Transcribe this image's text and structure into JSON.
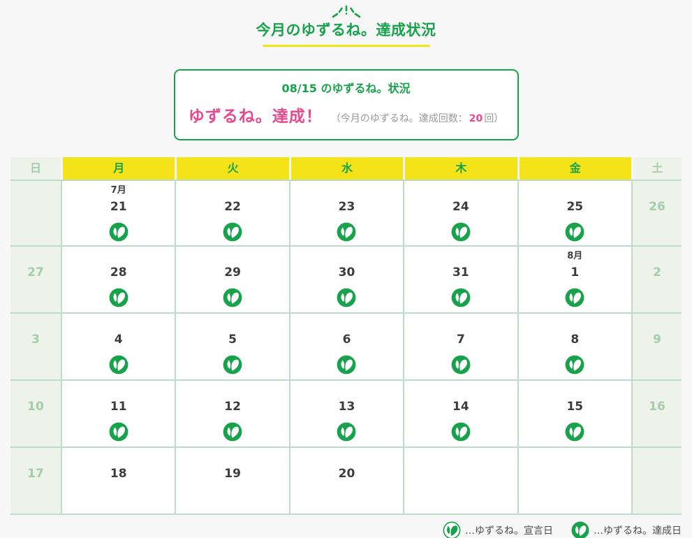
{
  "page": {
    "title": "今月のゆずるね。達成状況"
  },
  "status_box": {
    "heading": "08/15 のゆずるね。状況",
    "result": "ゆずるね。達成！",
    "count_prefix": "（今月のゆずるね。達成回数：",
    "count_value": "20",
    "count_suffix": "回）"
  },
  "calendar": {
    "weekdays": [
      "日",
      "月",
      "火",
      "水",
      "木",
      "金",
      "土"
    ],
    "rows": [
      [
        {
          "day": ""
        },
        {
          "month": "7月",
          "day": "21",
          "icon": "achieved"
        },
        {
          "day": "22",
          "icon": "achieved"
        },
        {
          "day": "23",
          "icon": "achieved"
        },
        {
          "day": "24",
          "icon": "achieved"
        },
        {
          "day": "25",
          "icon": "achieved"
        },
        {
          "day": "26"
        }
      ],
      [
        {
          "day": "27"
        },
        {
          "day": "28",
          "icon": "achieved"
        },
        {
          "day": "29",
          "icon": "achieved"
        },
        {
          "day": "30",
          "icon": "achieved"
        },
        {
          "day": "31",
          "icon": "achieved"
        },
        {
          "month": "8月",
          "day": "1",
          "icon": "achieved"
        },
        {
          "day": "2"
        }
      ],
      [
        {
          "day": "3"
        },
        {
          "day": "4",
          "icon": "achieved"
        },
        {
          "day": "5",
          "icon": "achieved"
        },
        {
          "day": "6",
          "icon": "achieved"
        },
        {
          "day": "7",
          "icon": "achieved"
        },
        {
          "day": "8",
          "icon": "achieved"
        },
        {
          "day": "9"
        }
      ],
      [
        {
          "day": "10"
        },
        {
          "day": "11",
          "icon": "achieved"
        },
        {
          "day": "12",
          "icon": "achieved"
        },
        {
          "day": "13",
          "icon": "achieved"
        },
        {
          "day": "14",
          "icon": "achieved"
        },
        {
          "day": "15",
          "icon": "achieved"
        },
        {
          "day": "16"
        }
      ],
      [
        {
          "day": "17"
        },
        {
          "day": "18"
        },
        {
          "day": "19"
        },
        {
          "day": "20"
        },
        {
          "day": ""
        },
        {
          "day": ""
        },
        {
          "day": ""
        }
      ]
    ]
  },
  "legend": {
    "declared": {
      "label": "…ゆずるね。宣言日"
    },
    "achieved": {
      "label": "…ゆずるね。達成日"
    }
  },
  "colors": {
    "green": "#18a24b",
    "yellow": "#f5e31a",
    "pink": "#e8498c",
    "page_bg": "#f7f7f8",
    "cell_line": "#bedcc7",
    "weekend_bg": "#edf3e9",
    "weekend_text": "#a3cdaa",
    "day_text": "#3c3c3c",
    "muted_text": "#9a9a9a",
    "legend_text": "#4b4b4b"
  }
}
